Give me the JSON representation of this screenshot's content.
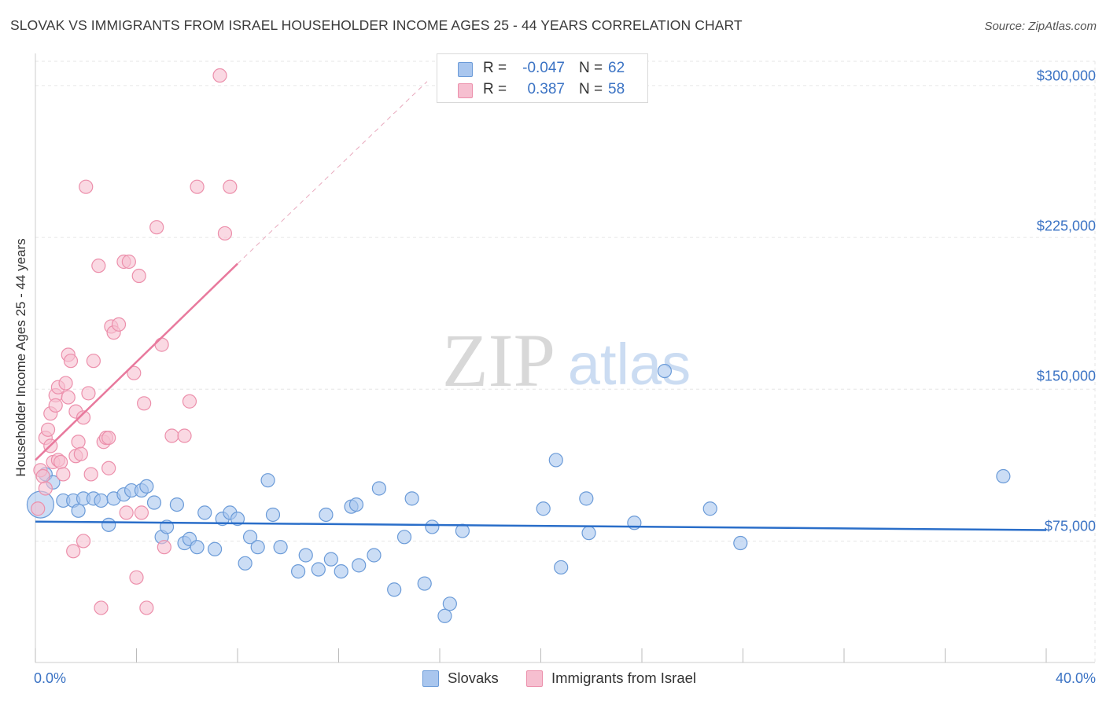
{
  "title": "SLOVAK VS IMMIGRANTS FROM ISRAEL HOUSEHOLDER INCOME AGES 25 - 44 YEARS CORRELATION CHART",
  "source": "Source: ZipAtlas.com",
  "watermark": {
    "zip": "ZIP",
    "atlas": "atlas"
  },
  "colors": {
    "blue_fill": "#a9c6ee",
    "blue_stroke": "#6b9bd8",
    "blue_line": "#2a6ec9",
    "pink_fill": "#f6bfd0",
    "pink_stroke": "#ec8fab",
    "pink_line": "#e8799d",
    "tick_text": "#3b73c4",
    "grid": "#e6e6e6"
  },
  "legend": {
    "rows": [
      {
        "r_label": "R =",
        "r_value": "-0.047",
        "n_label": "N =",
        "n_value": "62",
        "color": "#a9c6ee",
        "border": "#6b9bd8"
      },
      {
        "r_label": "R =",
        "r_value": "0.387",
        "n_label": "N =",
        "n_value": "58",
        "color": "#f6bfd0",
        "border": "#ec8fab"
      }
    ]
  },
  "bottom_legend": [
    {
      "label": "Slovaks",
      "color": "#a9c6ee",
      "border": "#6b9bd8"
    },
    {
      "label": "Immigrants from Israel",
      "color": "#f6bfd0",
      "border": "#ec8fab"
    }
  ],
  "chart_data": {
    "type": "scatter",
    "title": "SLOVAK VS IMMIGRANTS FROM ISRAEL HOUSEHOLDER INCOME AGES 25 - 44 YEARS CORRELATION CHART",
    "xlabel": "",
    "ylabel": "Householder Income Ages 25 - 44 years",
    "xlim": [
      0,
      40
    ],
    "ylim": [
      15000,
      312000
    ],
    "x_tick_labels": [
      "0.0%",
      "40.0%"
    ],
    "y_ticks": [
      75000,
      150000,
      225000,
      300000
    ],
    "y_tick_labels": [
      "$75,000",
      "$150,000",
      "$225,000",
      "$300,000"
    ],
    "grid": true,
    "legend_position": "bottom-center",
    "series": [
      {
        "name": "Slovaks",
        "trend": {
          "x": [
            0,
            40
          ],
          "y": [
            84600,
            80400
          ]
        },
        "points": [
          [
            0.2,
            93000
          ],
          [
            0.4,
            108000
          ],
          [
            0.7,
            104000
          ],
          [
            1.1,
            95000
          ],
          [
            1.5,
            95000
          ],
          [
            1.7,
            90000
          ],
          [
            1.9,
            96000
          ],
          [
            2.3,
            96000
          ],
          [
            2.6,
            95000
          ],
          [
            2.9,
            83000
          ],
          [
            3.1,
            96000
          ],
          [
            3.5,
            98000
          ],
          [
            3.8,
            100000
          ],
          [
            4.2,
            100000
          ],
          [
            4.4,
            102000
          ],
          [
            4.7,
            94000
          ],
          [
            5.0,
            77000
          ],
          [
            5.2,
            82000
          ],
          [
            5.6,
            93000
          ],
          [
            5.9,
            74000
          ],
          [
            6.1,
            76000
          ],
          [
            6.4,
            72000
          ],
          [
            6.7,
            89000
          ],
          [
            7.1,
            71000
          ],
          [
            7.4,
            86000
          ],
          [
            7.7,
            89000
          ],
          [
            8.0,
            86000
          ],
          [
            8.3,
            64000
          ],
          [
            8.5,
            77000
          ],
          [
            8.8,
            72000
          ],
          [
            9.2,
            105000
          ],
          [
            9.4,
            88000
          ],
          [
            9.7,
            72000
          ],
          [
            10.4,
            60000
          ],
          [
            10.7,
            68000
          ],
          [
            11.2,
            61000
          ],
          [
            11.5,
            88000
          ],
          [
            11.7,
            66000
          ],
          [
            12.1,
            60000
          ],
          [
            12.5,
            92000
          ],
          [
            12.7,
            93000
          ],
          [
            12.8,
            63000
          ],
          [
            13.4,
            68000
          ],
          [
            13.6,
            101000
          ],
          [
            14.2,
            51000
          ],
          [
            14.6,
            77000
          ],
          [
            14.9,
            96000
          ],
          [
            15.4,
            54000
          ],
          [
            15.7,
            82000
          ],
          [
            16.2,
            38000
          ],
          [
            16.4,
            44000
          ],
          [
            16.9,
            80000
          ],
          [
            20.1,
            91000
          ],
          [
            20.6,
            115000
          ],
          [
            20.8,
            62000
          ],
          [
            21.8,
            96000
          ],
          [
            21.9,
            79000
          ],
          [
            23.7,
            84000
          ],
          [
            24.9,
            159000
          ],
          [
            26.7,
            91000
          ],
          [
            27.9,
            74000
          ],
          [
            38.3,
            107000
          ]
        ]
      },
      {
        "name": "Immigrants from Israel",
        "trend": {
          "x": [
            0,
            8
          ],
          "y": [
            115000,
            212000
          ]
        },
        "trend_extended": {
          "x": [
            8,
            15.5
          ],
          "y": [
            212000,
            302000
          ]
        },
        "points": [
          [
            0.1,
            91000
          ],
          [
            0.2,
            110000
          ],
          [
            0.3,
            107000
          ],
          [
            0.4,
            126000
          ],
          [
            0.4,
            101000
          ],
          [
            0.5,
            130000
          ],
          [
            0.6,
            138000
          ],
          [
            0.6,
            122000
          ],
          [
            0.7,
            114000
          ],
          [
            0.8,
            147000
          ],
          [
            0.8,
            142000
          ],
          [
            0.9,
            115000
          ],
          [
            0.9,
            151000
          ],
          [
            1.0,
            114000
          ],
          [
            1.1,
            108000
          ],
          [
            1.2,
            153000
          ],
          [
            1.3,
            167000
          ],
          [
            1.3,
            146000
          ],
          [
            1.4,
            164000
          ],
          [
            1.5,
            70000
          ],
          [
            1.6,
            139000
          ],
          [
            1.6,
            117000
          ],
          [
            1.7,
            124000
          ],
          [
            1.8,
            118000
          ],
          [
            1.9,
            75000
          ],
          [
            1.9,
            136000
          ],
          [
            2.0,
            250000
          ],
          [
            2.1,
            148000
          ],
          [
            2.2,
            108000
          ],
          [
            2.3,
            164000
          ],
          [
            2.5,
            211000
          ],
          [
            2.6,
            42000
          ],
          [
            2.7,
            124000
          ],
          [
            2.8,
            126000
          ],
          [
            2.9,
            111000
          ],
          [
            2.9,
            126000
          ],
          [
            3.0,
            181000
          ],
          [
            3.1,
            178000
          ],
          [
            3.3,
            182000
          ],
          [
            3.5,
            213000
          ],
          [
            3.6,
            89000
          ],
          [
            3.7,
            213000
          ],
          [
            3.9,
            158000
          ],
          [
            4.0,
            57000
          ],
          [
            4.1,
            206000
          ],
          [
            4.2,
            89000
          ],
          [
            4.3,
            143000
          ],
          [
            4.4,
            42000
          ],
          [
            4.8,
            230000
          ],
          [
            5.0,
            172000
          ],
          [
            5.1,
            72000
          ],
          [
            5.4,
            127000
          ],
          [
            5.9,
            127000
          ],
          [
            6.1,
            144000
          ],
          [
            6.4,
            250000
          ],
          [
            7.5,
            227000
          ],
          [
            7.7,
            250000
          ],
          [
            7.3,
            305000
          ]
        ]
      }
    ]
  }
}
